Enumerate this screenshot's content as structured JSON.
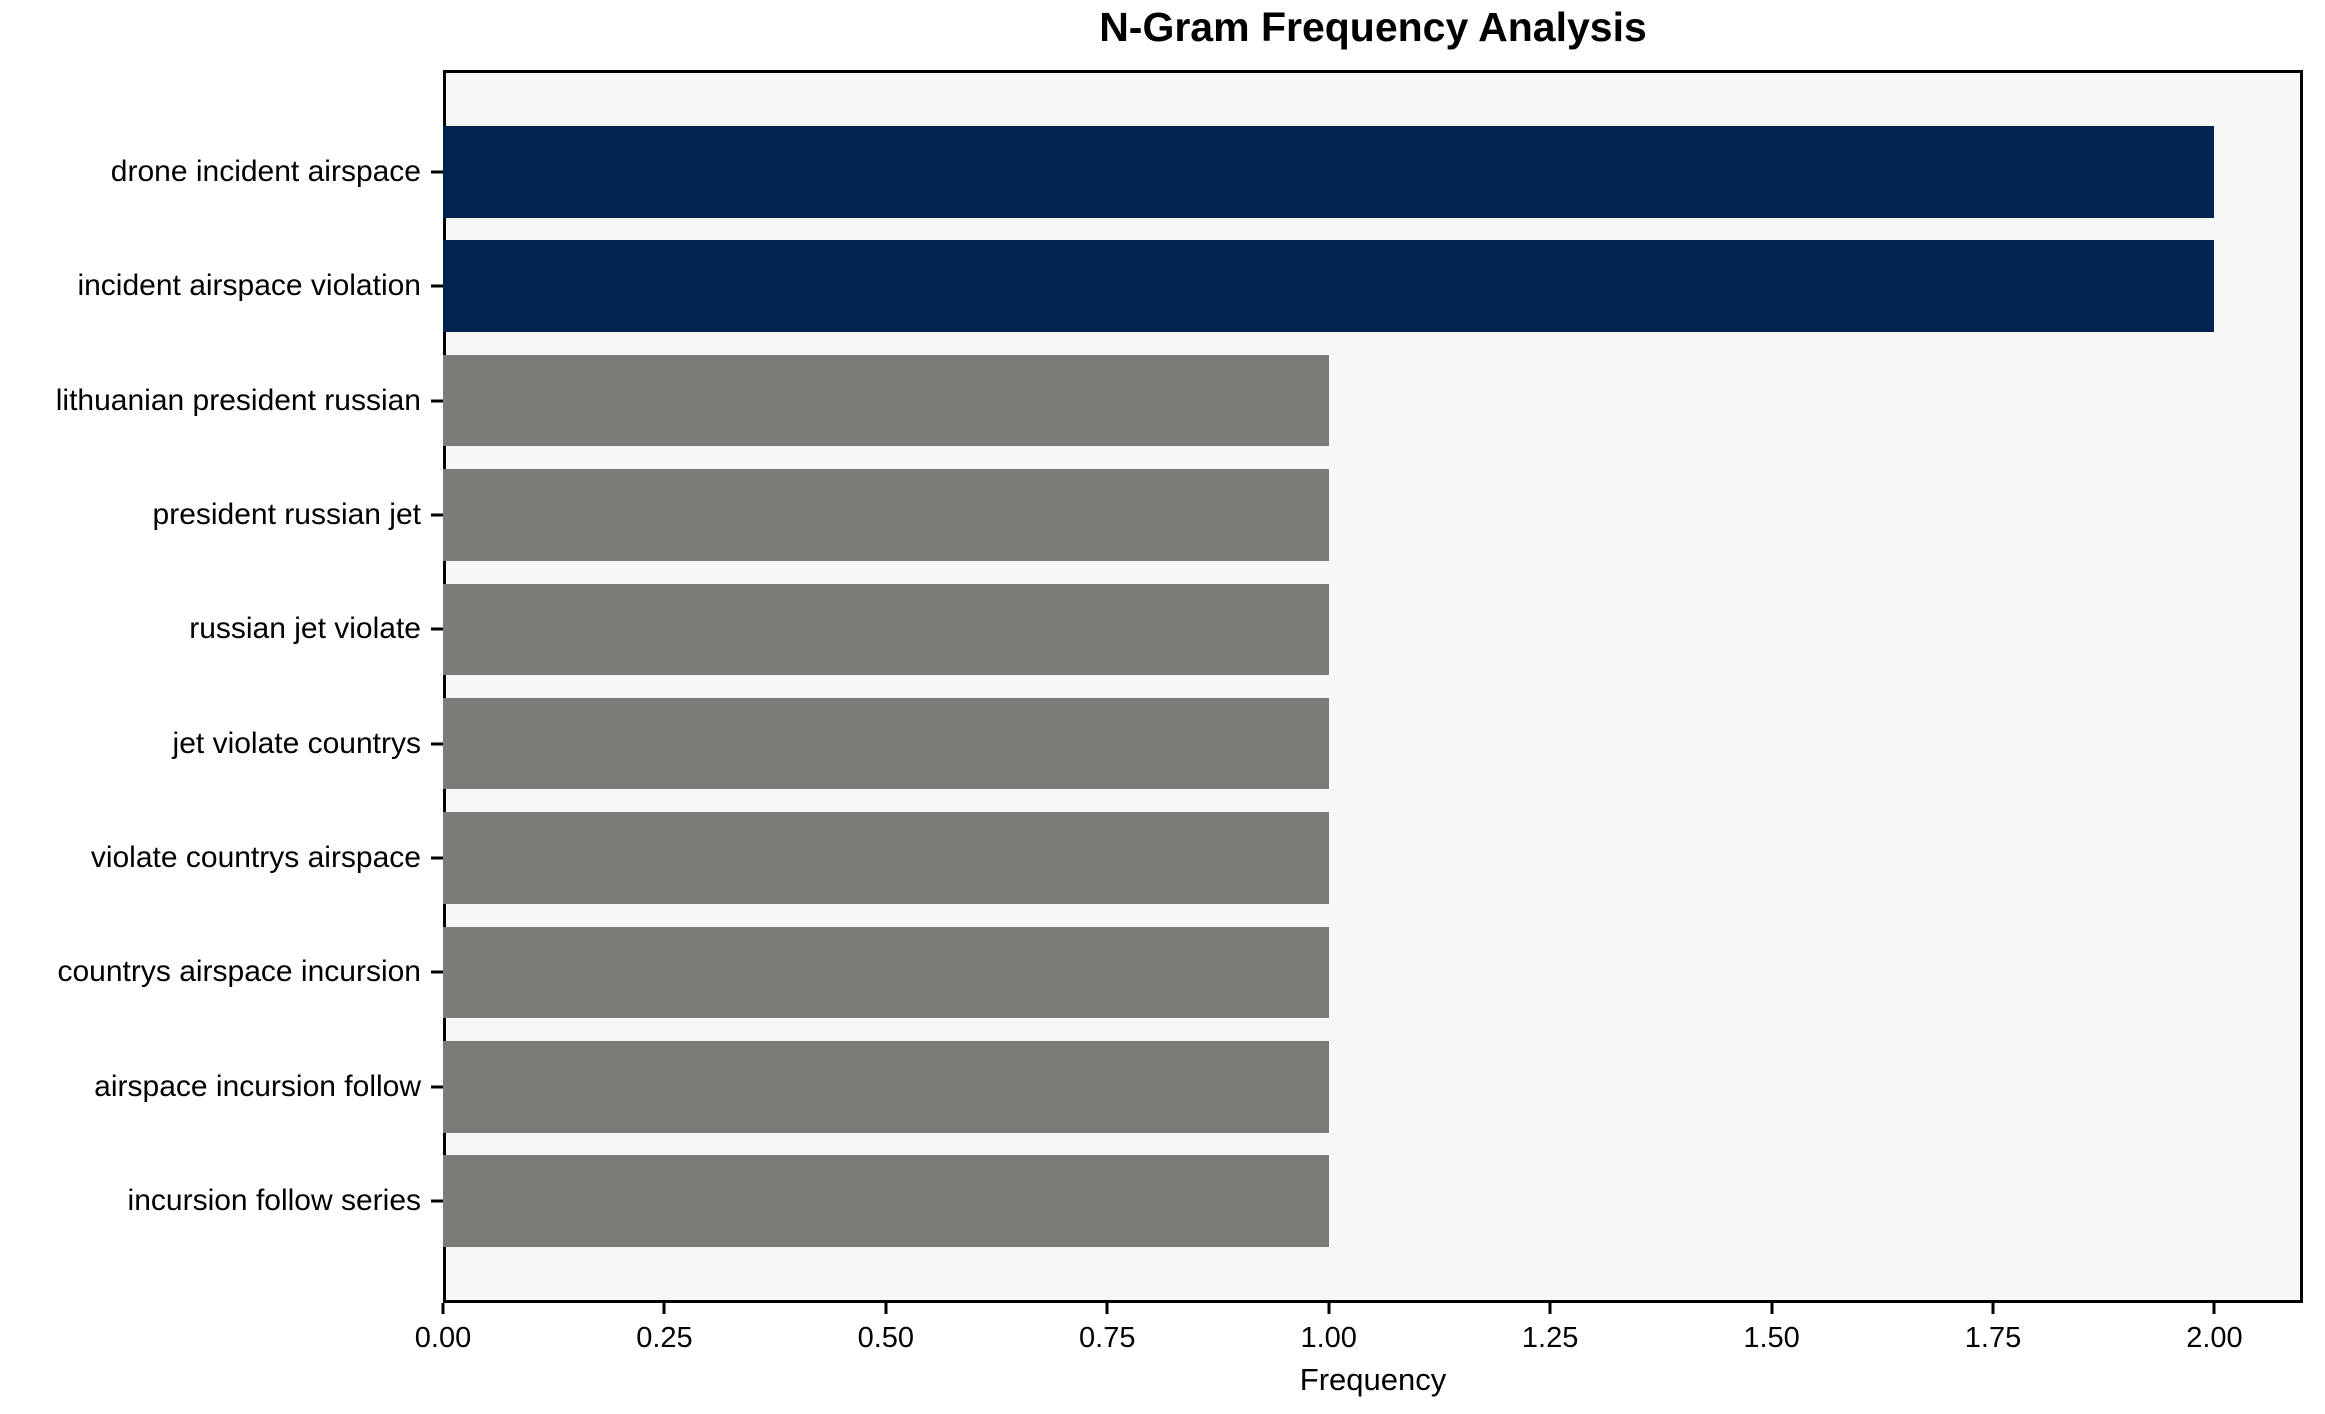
{
  "title": "N-Gram Frequency Analysis",
  "chart_data": {
    "type": "bar",
    "orientation": "horizontal",
    "title": "N-Gram Frequency Analysis",
    "xlabel": "Frequency",
    "ylabel": "",
    "xlim": [
      0,
      2.1
    ],
    "grid": false,
    "legend": false,
    "categories": [
      "drone incident airspace",
      "incident airspace violation",
      "lithuanian president russian",
      "president russian jet",
      "russian jet violate",
      "jet violate countrys",
      "violate countrys airspace",
      "countrys airspace incursion",
      "airspace incursion follow",
      "incursion follow series"
    ],
    "values": [
      2,
      2,
      1,
      1,
      1,
      1,
      1,
      1,
      1,
      1
    ],
    "bar_colors": [
      "#00234f",
      "#00234f",
      "#7b7b78",
      "#7b7b78",
      "#7b7b78",
      "#7b7b78",
      "#7b7b78",
      "#7b7b78",
      "#7b7b78",
      "#7b7b78"
    ],
    "x_tick_values": [
      0,
      0.25,
      0.5,
      0.75,
      1.0,
      1.25,
      1.5,
      1.75,
      2.0
    ],
    "x_tick_labels": [
      "0.00",
      "0.25",
      "0.50",
      "0.75",
      "1.00",
      "1.25",
      "1.50",
      "1.75",
      "2.00"
    ]
  },
  "colors": {
    "highlight_bar": "#00234f",
    "default_bar": "#7b7b78",
    "plot_background": "#f7f7f6",
    "figure_background": "#ffffff",
    "axis": "#000000",
    "text": "#000000"
  }
}
